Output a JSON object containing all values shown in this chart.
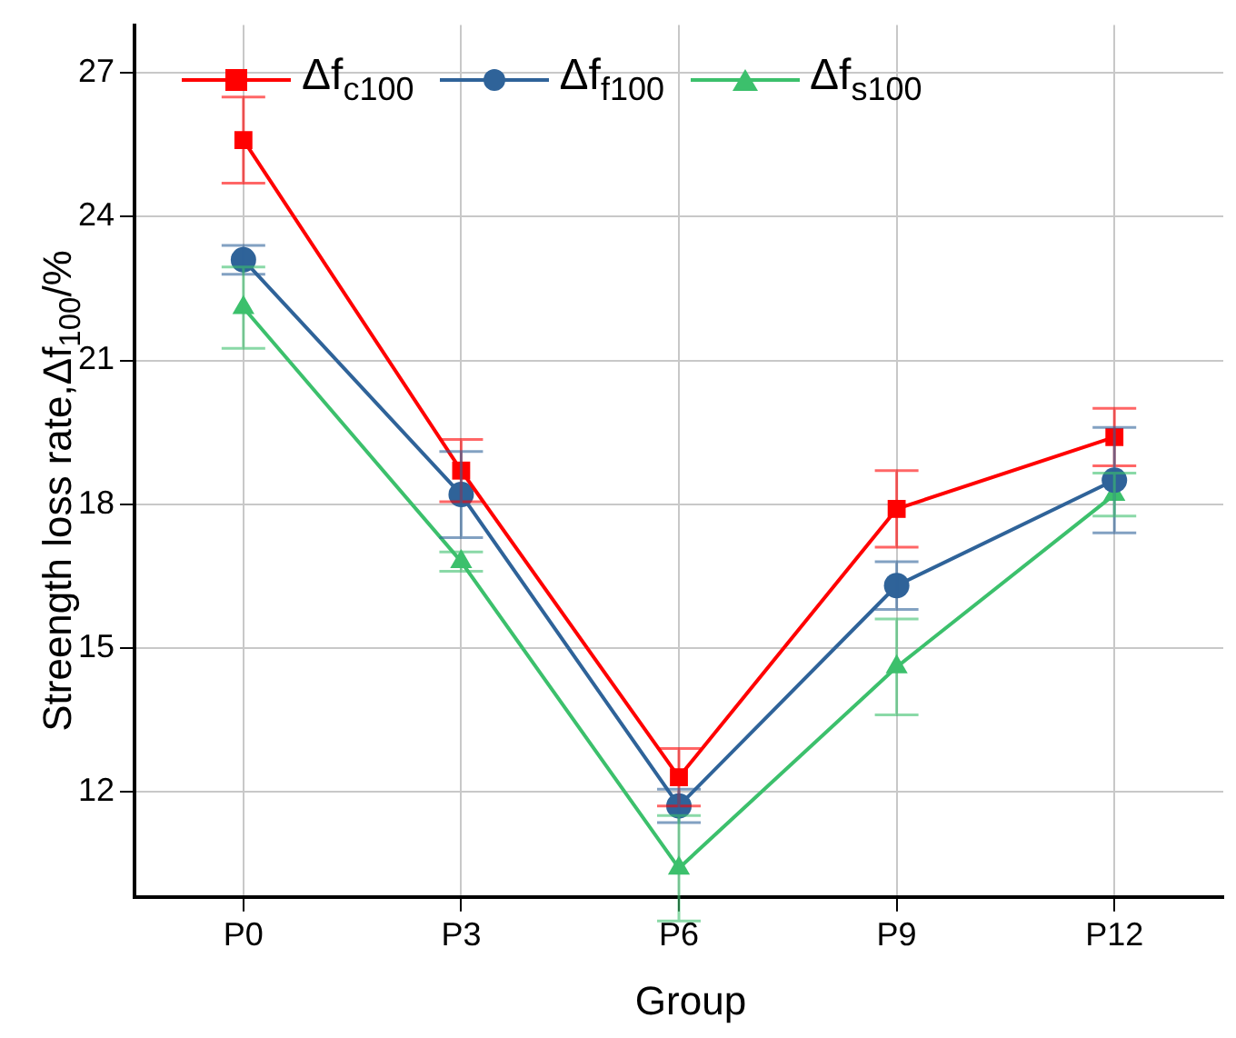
{
  "chart_data": {
    "type": "line",
    "xlabel": "Group",
    "ylabel": "Streength loss rate,Δf$_{100}$/%",
    "categories": [
      "P0",
      "P3",
      "P6",
      "P9",
      "P12"
    ],
    "series": [
      {
        "name": "Δf$_{c100}$",
        "color": "#ff0000",
        "marker": "square",
        "values": [
          25.6,
          18.7,
          12.3,
          17.9,
          19.4
        ],
        "errors": [
          0.9,
          0.65,
          0.6,
          0.8,
          0.6
        ]
      },
      {
        "name": "Δf$_{f100}$",
        "color": "#2f6399",
        "marker": "circle",
        "values": [
          23.1,
          18.2,
          11.7,
          16.3,
          18.5
        ],
        "errors": [
          0.3,
          0.9,
          0.35,
          0.5,
          1.1
        ]
      },
      {
        "name": "Δf$_{s100}$",
        "color": "#3cc06c",
        "marker": "triangle",
        "values": [
          22.1,
          16.8,
          10.4,
          14.6,
          18.2
        ],
        "errors": [
          0.85,
          0.2,
          1.1,
          1.0,
          0.45
        ]
      }
    ],
    "ylim": [
      9.8,
      28
    ],
    "yticks": [
      12,
      15,
      18,
      21,
      24,
      27
    ],
    "grid": true,
    "legend": "top",
    "line_style": "solid"
  }
}
